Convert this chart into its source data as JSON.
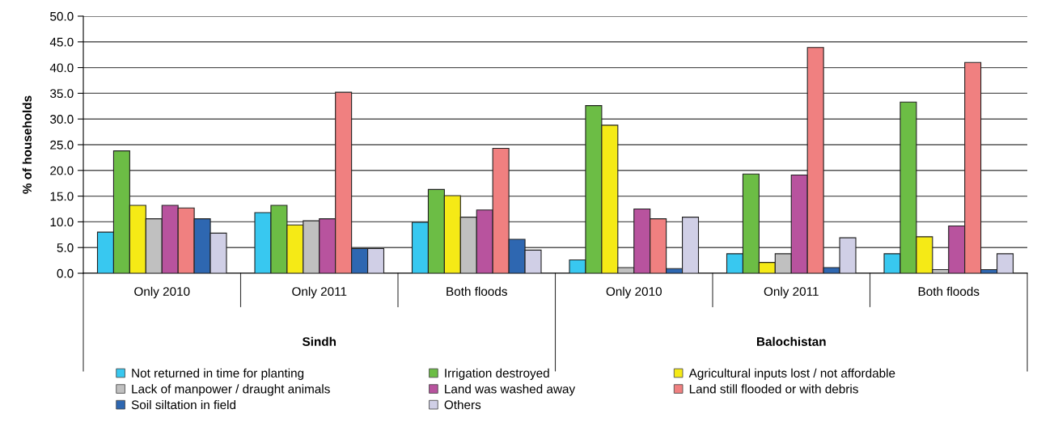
{
  "chart_data": {
    "type": "bar",
    "ylabel": "% of households",
    "categories": [
      "Only 2010",
      "Only 2011",
      "Both floods",
      "Only 2010",
      "Only 2011",
      "Both floods"
    ],
    "annotations": [
      "Sindh",
      "Balochistan"
    ],
    "series": [
      {
        "name": "Not returned in time for planting",
        "color": "#38c8f0",
        "values": [
          8.0,
          11.8,
          9.9,
          2.6,
          3.8,
          3.8
        ]
      },
      {
        "name": "Irrigation destroyed",
        "color": "#6cbd45",
        "values": [
          23.8,
          13.2,
          16.3,
          32.6,
          19.3,
          33.3
        ]
      },
      {
        "name": "Agricultural inputs lost / not affordable",
        "color": "#f5ea16",
        "values": [
          13.2,
          9.4,
          15.1,
          28.8,
          2.1,
          7.1
        ]
      },
      {
        "name": "Lack of manpower / draught animals",
        "color": "#c0c0c0",
        "values": [
          10.6,
          10.2,
          10.9,
          1.1,
          3.8,
          0.7
        ]
      },
      {
        "name": "Land was washed away",
        "color": "#b8539e",
        "values": [
          13.2,
          10.6,
          12.3,
          12.5,
          19.1,
          9.2
        ]
      },
      {
        "name": "Land still flooded or with debris",
        "color": "#f08080",
        "values": [
          12.7,
          35.2,
          24.3,
          10.6,
          43.9,
          41.0
        ]
      },
      {
        "name": "Soil siltation in field",
        "color": "#2e67b1",
        "values": [
          10.6,
          4.8,
          6.6,
          0.9,
          1.1,
          0.7
        ]
      },
      {
        "name": "Others",
        "color": "#d0cfe6",
        "values": [
          7.8,
          4.8,
          4.5,
          10.9,
          6.9,
          3.8
        ]
      }
    ],
    "ylim": [
      0,
      50
    ],
    "yticks": [
      {
        "value": 0,
        "label": "0.0"
      },
      {
        "value": 5,
        "label": "5.0"
      },
      {
        "value": 10,
        "label": "10.0"
      },
      {
        "value": 15,
        "label": "15.0"
      },
      {
        "value": 20,
        "label": "20.0"
      },
      {
        "value": 25,
        "label": "25.0"
      },
      {
        "value": 30,
        "label": "30.0"
      },
      {
        "value": 35,
        "label": "35.0"
      },
      {
        "value": 40,
        "label": "40.0"
      },
      {
        "value": 45,
        "label": "45.0"
      },
      {
        "value": 50,
        "label": "50.0"
      }
    ],
    "grid": "y",
    "legend": "bottom"
  }
}
